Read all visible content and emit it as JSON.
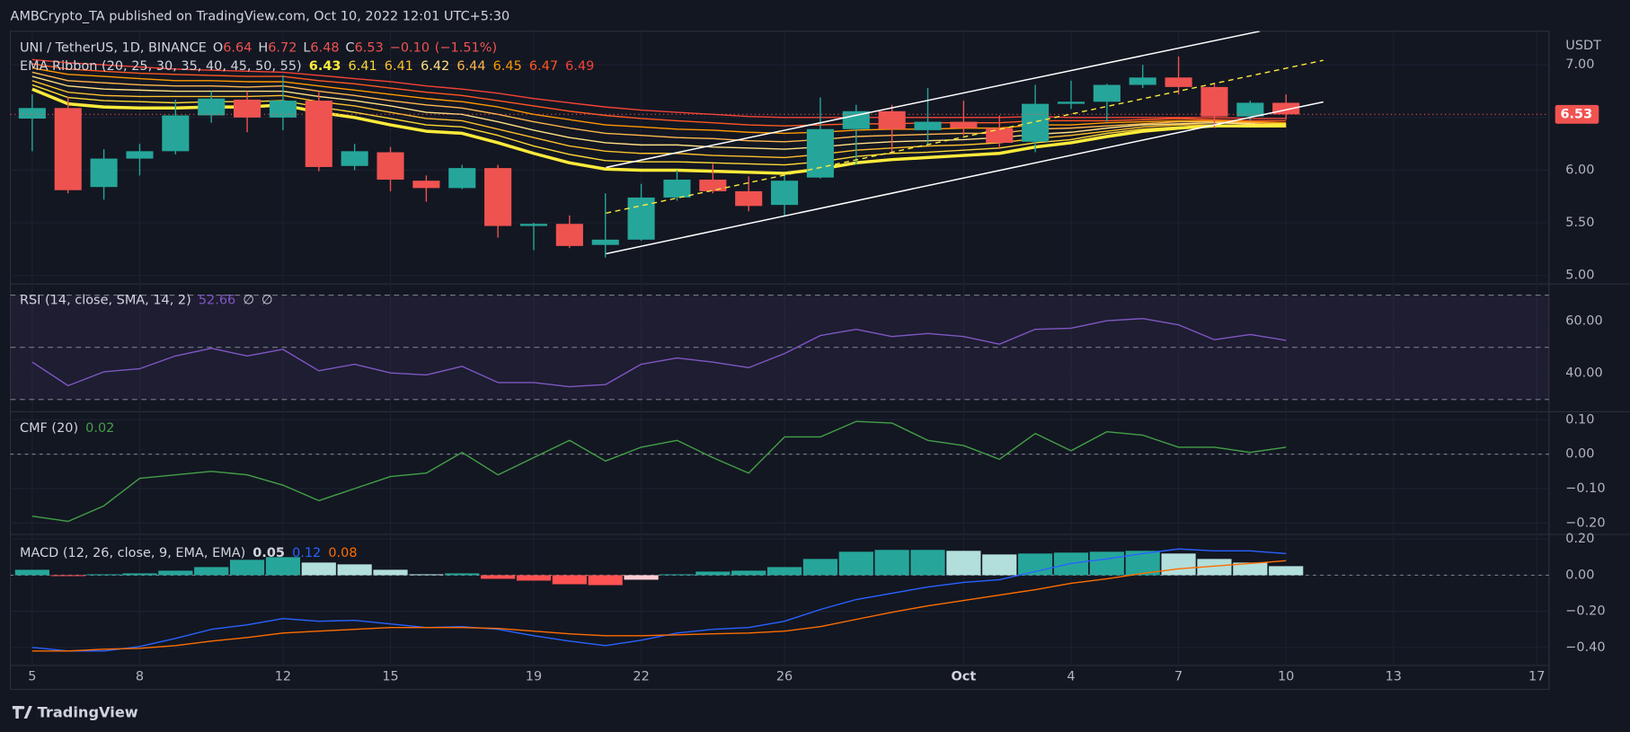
{
  "header": "AMBCrypto_TA published on TradingView.com, Oct 10, 2022 12:01 UTC+5:30",
  "footer": "TradingView",
  "chart_data": [
    {
      "type": "candlestick",
      "title": "UNI / TetherUS, 1D, BINANCE",
      "ohlc_legend": [
        {
          "key": "O",
          "value": 6.64
        },
        {
          "key": "H",
          "value": 6.72
        },
        {
          "key": "L",
          "value": 6.48
        },
        {
          "key": "C",
          "value": 6.53
        }
      ],
      "change": {
        "value": -0.1,
        "label": "−0.10"
      },
      "change_pct": {
        "value": -1.51,
        "label": "(−1.51%)"
      },
      "axis_unit": "USDT",
      "last_price": 6.53,
      "up_color": "#26a69a",
      "down_color": "#ef5350",
      "categories": [
        "5",
        null,
        null,
        "8",
        null,
        null,
        null,
        "12",
        null,
        null,
        "15",
        null,
        null,
        null,
        "19",
        null,
        null,
        "22",
        null,
        null,
        null,
        "26",
        null,
        null,
        null,
        null,
        "Oct",
        null,
        null,
        "4",
        null,
        null,
        "7",
        null,
        null,
        "10",
        null,
        null,
        "13",
        null,
        null,
        null,
        "17"
      ],
      "open": [
        6.49,
        6.59,
        5.84,
        6.11,
        6.18,
        6.52,
        6.67,
        6.5,
        6.66,
        6.04,
        6.17,
        5.9,
        5.83,
        6.02,
        5.47,
        5.49,
        5.29,
        5.34,
        5.74,
        5.91,
        5.8,
        5.67,
        5.93,
        6.39,
        6.56,
        6.38,
        6.46,
        6.4,
        6.27,
        6.63,
        6.65,
        6.81,
        6.88,
        6.79,
        6.51,
        6.64,
        null,
        null,
        null,
        null,
        null,
        null,
        null
      ],
      "high": [
        6.72,
        6.7,
        6.2,
        6.25,
        6.67,
        6.75,
        6.75,
        6.9,
        6.74,
        6.25,
        6.22,
        5.95,
        6.05,
        6.05,
        5.5,
        5.57,
        5.78,
        5.87,
        6.0,
        6.06,
        5.94,
        5.96,
        6.69,
        6.62,
        6.62,
        6.78,
        6.66,
        6.52,
        6.81,
        6.85,
        6.82,
        7.0,
        7.08,
        6.82,
        6.66,
        6.72,
        null,
        null,
        null,
        null,
        null,
        null,
        null
      ],
      "low": [
        6.18,
        5.78,
        5.72,
        5.95,
        6.15,
        6.45,
        6.36,
        6.38,
        5.99,
        6.0,
        5.8,
        5.7,
        5.82,
        5.36,
        5.24,
        5.26,
        5.17,
        5.33,
        5.71,
        5.78,
        5.61,
        5.57,
        5.92,
        6.05,
        6.16,
        6.25,
        6.33,
        6.21,
        6.17,
        6.58,
        6.46,
        6.78,
        6.72,
        6.4,
        6.47,
        6.48,
        null,
        null,
        null,
        null,
        null,
        null,
        null
      ],
      "close": [
        6.59,
        5.81,
        6.11,
        6.18,
        6.52,
        6.68,
        6.5,
        6.66,
        6.03,
        6.18,
        5.91,
        5.83,
        6.02,
        5.47,
        5.49,
        5.28,
        5.34,
        5.74,
        5.91,
        5.8,
        5.66,
        5.9,
        6.39,
        6.56,
        6.39,
        6.46,
        6.4,
        6.26,
        6.63,
        6.65,
        6.81,
        6.88,
        6.79,
        6.51,
        6.64,
        6.53,
        null,
        null,
        null,
        null,
        null,
        null,
        null
      ],
      "ylim": [
        4.93,
        7.32
      ],
      "yticks": [
        {
          "value": 5,
          "label": "5.00"
        },
        {
          "value": 5.5,
          "label": "5.50"
        },
        {
          "value": 6,
          "label": "6.00"
        },
        {
          "value": 6.5,
          "label": "6.50"
        },
        {
          "value": 7,
          "label": "7.00"
        }
      ],
      "ribbon": {
        "label": "EMA Ribbon (20, 25, 30, 35, 40, 45, 50, 55)",
        "series": [
          {
            "color": "#ffeb3b",
            "last": 6.43,
            "values": [
              6.77,
              6.63,
              6.6,
              6.59,
              6.59,
              6.6,
              6.6,
              6.62,
              6.55,
              6.5,
              6.43,
              6.37,
              6.35,
              6.26,
              6.16,
              6.07,
              6.01,
              6.0,
              6.0,
              5.99,
              5.98,
              5.97,
              6.01,
              6.07,
              6.1,
              6.12,
              6.14,
              6.16,
              6.22,
              6.26,
              6.32,
              6.37,
              6.4,
              6.42,
              6.42,
              6.43,
              null,
              null,
              null,
              null,
              null,
              null,
              null
            ]
          },
          {
            "color": "#fdd835",
            "last": 6.41,
            "values": [
              6.81,
              6.69,
              6.66,
              6.65,
              6.64,
              6.65,
              6.65,
              6.66,
              6.6,
              6.55,
              6.49,
              6.43,
              6.41,
              6.33,
              6.23,
              6.15,
              6.09,
              6.08,
              6.08,
              6.07,
              6.06,
              6.05,
              6.08,
              6.13,
              6.16,
              6.17,
              6.19,
              6.21,
              6.26,
              6.29,
              6.35,
              6.39,
              6.41,
              6.42,
              6.41,
              6.41,
              null,
              null,
              null,
              null,
              null,
              null,
              null
            ]
          },
          {
            "color": "#fbc02d",
            "last": 6.41,
            "values": [
              6.85,
              6.74,
              6.71,
              6.7,
              6.7,
              6.7,
              6.7,
              6.71,
              6.65,
              6.61,
              6.55,
              6.49,
              6.47,
              6.39,
              6.31,
              6.23,
              6.18,
              6.16,
              6.16,
              6.14,
              6.13,
              6.12,
              6.15,
              6.19,
              6.21,
              6.23,
              6.24,
              6.26,
              6.3,
              6.33,
              6.37,
              6.41,
              6.43,
              6.43,
              6.42,
              6.41,
              null,
              null,
              null,
              null,
              null,
              null,
              null
            ]
          },
          {
            "color": "#ffe082",
            "last": 6.42,
            "values": [
              6.89,
              6.8,
              6.77,
              6.76,
              6.75,
              6.75,
              6.75,
              6.75,
              6.7,
              6.66,
              6.61,
              6.55,
              6.53,
              6.46,
              6.38,
              6.31,
              6.26,
              6.24,
              6.24,
              6.22,
              6.21,
              6.2,
              6.22,
              6.25,
              6.27,
              6.28,
              6.29,
              6.31,
              6.34,
              6.36,
              6.4,
              6.43,
              6.44,
              6.45,
              6.44,
              6.42,
              null,
              null,
              null,
              null,
              null,
              null,
              null
            ]
          },
          {
            "color": "#ffb74d",
            "last": 6.44,
            "values": [
              6.93,
              6.85,
              6.83,
              6.81,
              6.8,
              6.8,
              6.79,
              6.8,
              6.75,
              6.71,
              6.66,
              6.62,
              6.59,
              6.53,
              6.46,
              6.4,
              6.35,
              6.33,
              6.31,
              6.3,
              6.28,
              6.27,
              6.29,
              6.32,
              6.33,
              6.34,
              6.35,
              6.35,
              6.39,
              6.4,
              6.42,
              6.44,
              6.46,
              6.46,
              6.45,
              6.44,
              null,
              null,
              null,
              null,
              null,
              null,
              null
            ]
          },
          {
            "color": "#ff9800",
            "last": 6.45,
            "values": [
              6.97,
              6.91,
              6.89,
              6.87,
              6.85,
              6.85,
              6.84,
              6.84,
              6.8,
              6.76,
              6.72,
              6.68,
              6.65,
              6.6,
              6.53,
              6.48,
              6.43,
              6.41,
              6.39,
              6.38,
              6.36,
              6.35,
              6.36,
              6.38,
              6.39,
              6.39,
              6.4,
              6.4,
              6.43,
              6.43,
              6.45,
              6.46,
              6.47,
              6.47,
              6.46,
              6.45,
              null,
              null,
              null,
              null,
              null,
              null,
              null
            ]
          },
          {
            "color": "#ff5722",
            "last": 6.47,
            "values": [
              7.01,
              6.96,
              6.94,
              6.92,
              6.91,
              6.9,
              6.89,
              6.89,
              6.85,
              6.82,
              6.78,
              6.74,
              6.71,
              6.66,
              6.61,
              6.56,
              6.52,
              6.49,
              6.47,
              6.45,
              6.43,
              6.42,
              6.43,
              6.44,
              6.44,
              6.45,
              6.45,
              6.45,
              6.47,
              6.47,
              6.47,
              6.48,
              6.49,
              6.48,
              6.47,
              6.47,
              null,
              null,
              null,
              null,
              null,
              null,
              null
            ]
          },
          {
            "color": "#f44336",
            "last": 6.49,
            "values": [
              7.05,
              7.02,
              7.0,
              6.98,
              6.96,
              6.95,
              6.94,
              6.93,
              6.9,
              6.87,
              6.84,
              6.8,
              6.77,
              6.73,
              6.68,
              6.64,
              6.6,
              6.57,
              6.55,
              6.53,
              6.51,
              6.5,
              6.5,
              6.5,
              6.5,
              6.5,
              6.5,
              6.5,
              6.51,
              6.5,
              6.5,
              6.5,
              6.5,
              6.5,
              6.49,
              6.49,
              null,
              null,
              null,
              null,
              null,
              null,
              null
            ]
          }
        ]
      }
    },
    {
      "type": "line",
      "title": "RSI (14, close, SMA, 14, 2)",
      "last": 52.66,
      "na_labels": [
        "∅",
        "∅"
      ],
      "color": "#7e57c2",
      "values": [
        44.3,
        35.3,
        40.6,
        41.8,
        46.7,
        49.6,
        46.7,
        49.2,
        41.0,
        43.5,
        40.2,
        39.4,
        42.7,
        36.5,
        36.5,
        34.9,
        35.7,
        43.5,
        45.9,
        44.3,
        42.2,
        47.6,
        54.5,
        56.9,
        54.1,
        55.3,
        54.1,
        51.2,
        56.9,
        57.3,
        60.2,
        61.0,
        58.6,
        52.9,
        54.9,
        52.66,
        null,
        null,
        null,
        null,
        null,
        null,
        null
      ],
      "ylim": [
        25.7,
        73.9
      ],
      "yticks": [
        {
          "value": 40,
          "label": "40.00"
        },
        {
          "value": 60,
          "label": "60.00"
        }
      ],
      "levels": [
        70,
        50,
        30
      ],
      "band": [
        30,
        70
      ]
    },
    {
      "type": "line",
      "title": "CMF (20)",
      "last": 0.02,
      "color": "#43a047",
      "values": [
        -0.18,
        -0.195,
        -0.15,
        -0.07,
        -0.06,
        -0.05,
        -0.06,
        -0.09,
        -0.135,
        -0.1,
        -0.065,
        -0.055,
        0.005,
        -0.06,
        -0.01,
        0.04,
        -0.02,
        0.02,
        0.04,
        -0.01,
        -0.055,
        0.05,
        0.05,
        0.095,
        0.09,
        0.04,
        0.025,
        -0.015,
        0.06,
        0.01,
        0.065,
        0.055,
        0.02,
        0.02,
        0.005,
        0.02,
        null,
        null,
        null,
        null,
        null,
        null,
        null
      ],
      "ylim": [
        -0.23,
        0.12
      ],
      "yticks": [
        {
          "value": -0.2,
          "label": "−0.20"
        },
        {
          "value": -0.1,
          "label": "−0.10"
        },
        {
          "value": 0,
          "label": "0.00"
        },
        {
          "value": 0.1,
          "label": "0.10"
        }
      ],
      "levels": [
        0
      ]
    },
    {
      "type": "macd",
      "title": "MACD (12, 26, close, 9, EMA, EMA)",
      "histogram": {
        "last": 0.05,
        "colors": {
          "rising_above": "#26a69a",
          "falling_above": "#b2dfdb",
          "rising_below": "#ffcdd2",
          "falling_below": "#ff5252"
        },
        "values": [
          0.03,
          -0.005,
          0.005,
          0.01,
          0.025,
          0.045,
          0.085,
          0.1,
          0.07,
          0.06,
          0.03,
          0.005,
          0.01,
          -0.02,
          -0.03,
          -0.05,
          -0.055,
          -0.025,
          0.005,
          0.02,
          0.025,
          0.045,
          0.09,
          0.13,
          0.14,
          0.14,
          0.135,
          0.115,
          0.12,
          0.125,
          0.13,
          0.135,
          0.12,
          0.09,
          0.07,
          0.05,
          null,
          null,
          null,
          null,
          null,
          null,
          null
        ]
      },
      "macd": {
        "color": "#2962ff",
        "last": 0.12,
        "values": [
          -0.4,
          -0.42,
          -0.42,
          -0.395,
          -0.35,
          -0.3,
          -0.275,
          -0.24,
          -0.255,
          -0.25,
          -0.27,
          -0.29,
          -0.285,
          -0.3,
          -0.335,
          -0.365,
          -0.39,
          -0.36,
          -0.32,
          -0.3,
          -0.29,
          -0.255,
          -0.19,
          -0.135,
          -0.1,
          -0.065,
          -0.04,
          -0.025,
          0.02,
          0.065,
          0.09,
          0.12,
          0.145,
          0.135,
          0.135,
          0.12,
          null,
          null,
          null,
          null,
          null,
          null,
          null
        ]
      },
      "signal": {
        "color": "#ff6d00",
        "last": 0.08,
        "values": [
          -0.42,
          -0.42,
          -0.41,
          -0.405,
          -0.39,
          -0.365,
          -0.345,
          -0.32,
          -0.31,
          -0.3,
          -0.29,
          -0.29,
          -0.29,
          -0.295,
          -0.31,
          -0.325,
          -0.335,
          -0.335,
          -0.33,
          -0.325,
          -0.32,
          -0.31,
          -0.285,
          -0.245,
          -0.205,
          -0.17,
          -0.14,
          -0.11,
          -0.08,
          -0.045,
          -0.02,
          0.01,
          0.035,
          0.05,
          0.065,
          0.08,
          null,
          null,
          null,
          null,
          null,
          null,
          null
        ]
      },
      "ylim": [
        -0.5,
        0.22
      ],
      "yticks": [
        {
          "value": -0.4,
          "label": "−0.40"
        },
        {
          "value": -0.2,
          "label": "−0.20"
        },
        {
          "value": 0,
          "label": "0.00"
        },
        {
          "value": 0.2,
          "label": "0.20"
        }
      ],
      "levels": [
        0
      ]
    }
  ]
}
